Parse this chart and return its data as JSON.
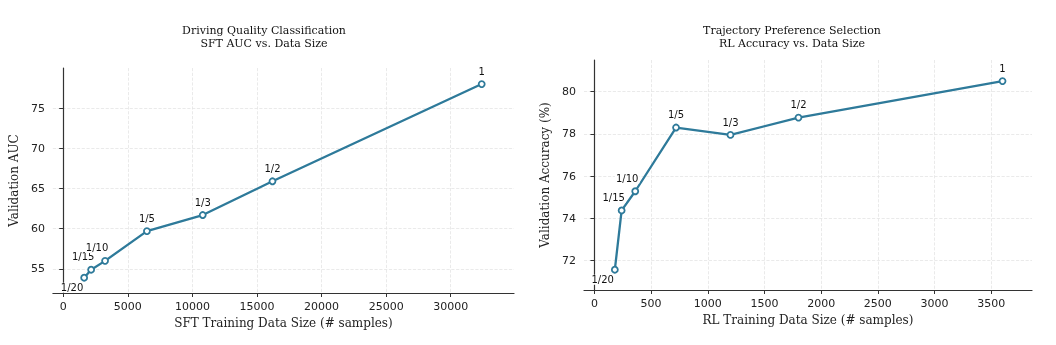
{
  "chart_data": [
    {
      "type": "line",
      "title": "Driving Quality Classification",
      "subtitle": "SFT AUC vs. Data Size",
      "xlabel": "SFT Training Data Size (# samples)",
      "ylabel": "Validation AUC",
      "x": [
        1620,
        2160,
        3240,
        6480,
        10800,
        16200,
        32400
      ],
      "series": [
        {
          "color": "#2e7a9a",
          "values": [
            53.9,
            54.9,
            56.0,
            59.7,
            61.7,
            65.9,
            78.0
          ]
        }
      ],
      "annotations": [
        {
          "text": "1/20",
          "x": 1620,
          "y": 53.9
        },
        {
          "text": "1/15",
          "x": 2160,
          "y": 54.9
        },
        {
          "text": "1/10",
          "x": 3240,
          "y": 56.0
        },
        {
          "text": "1/5",
          "x": 6480,
          "y": 59.7
        },
        {
          "text": "1/3",
          "x": 10800,
          "y": 61.7
        },
        {
          "text": "1/2",
          "x": 16200,
          "y": 65.9
        },
        {
          "text": "1",
          "x": 32400,
          "y": 78.0
        }
      ],
      "xlim": [
        -800,
        34900
      ],
      "xticks": [
        0,
        5000,
        10000,
        15000,
        20000,
        25000,
        30000
      ],
      "ylim": [
        52,
        80
      ],
      "yticks": [
        55,
        60,
        65,
        70,
        75
      ],
      "grid": true,
      "marker": "circle",
      "line_style": "solid"
    },
    {
      "type": "line",
      "title": "Trajectory Preference Selection",
      "subtitle": "RL Accuracy vs. Data Size",
      "xlabel": "RL Training Data Size (# samples)",
      "ylabel": "Validation Accuracy (%)",
      "x": [
        180,
        240,
        360,
        720,
        1200,
        1800,
        3600
      ],
      "series": [
        {
          "color": "#2e7a9a",
          "values": [
            71.56,
            74.37,
            75.28,
            78.3,
            77.95,
            78.77,
            80.5
          ]
        }
      ],
      "annotations": [
        {
          "text": "1/20",
          "x": 180,
          "y": 71.56
        },
        {
          "text": "1/15",
          "x": 240,
          "y": 74.37
        },
        {
          "text": "1/10",
          "x": 360,
          "y": 75.28
        },
        {
          "text": "1/5",
          "x": 720,
          "y": 78.3
        },
        {
          "text": "1/3",
          "x": 1200,
          "y": 77.95
        },
        {
          "text": "1/2",
          "x": 1800,
          "y": 78.77
        },
        {
          "text": "1",
          "x": 3600,
          "y": 80.5
        }
      ],
      "xlim": [
        -92,
        3860
      ],
      "xticks": [
        0,
        500,
        1000,
        1500,
        2000,
        2500,
        3000,
        3500
      ],
      "ylim": [
        70.6,
        81.5
      ],
      "yticks": [
        72,
        74,
        76,
        78,
        80
      ],
      "grid": true,
      "marker": "circle",
      "line_style": "solid"
    }
  ]
}
